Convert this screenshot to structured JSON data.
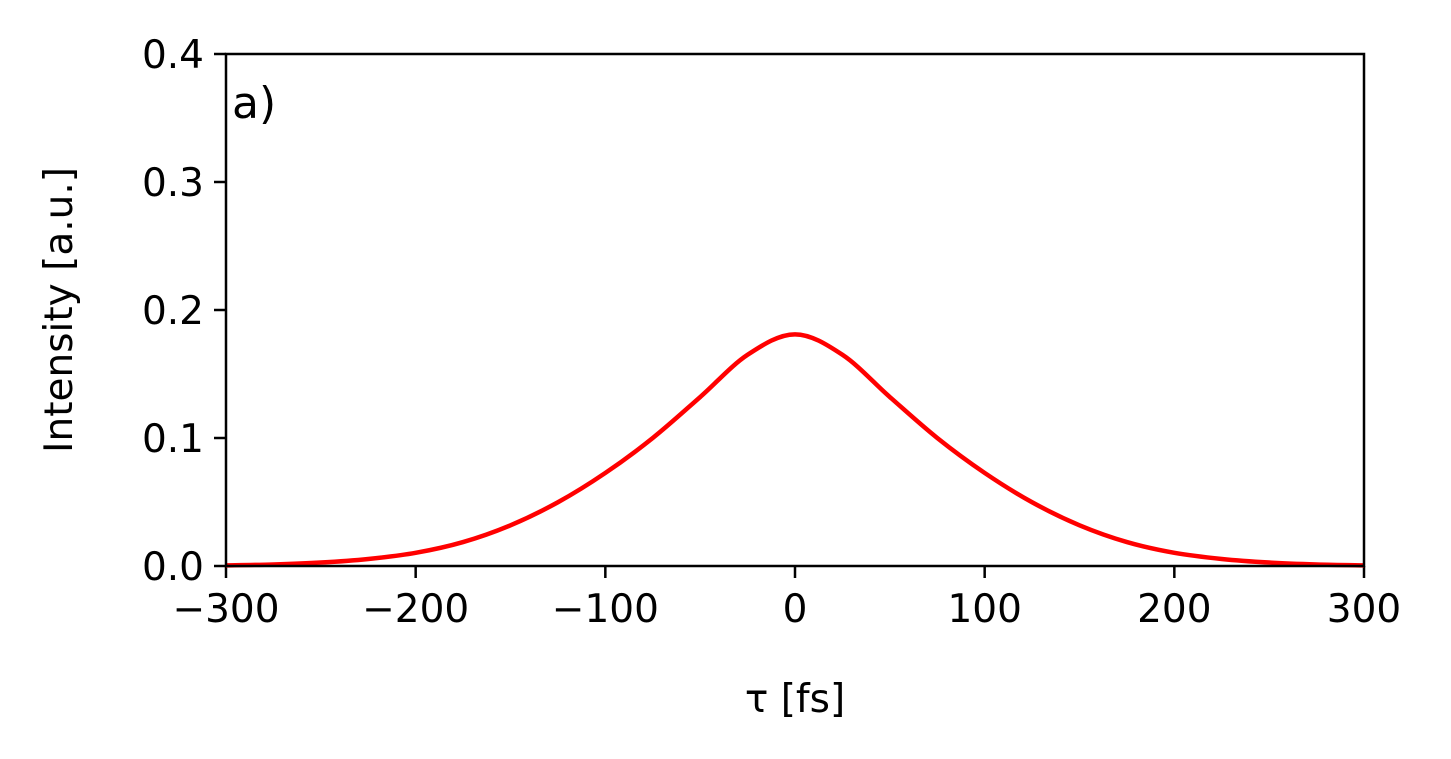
{
  "chart_data": {
    "type": "line",
    "panel_label": "a)",
    "xlabel": "τ [fs]",
    "ylabel": "Intensity [a.u.]",
    "xlim": [
      -300,
      300
    ],
    "ylim": [
      0,
      0.4
    ],
    "x_ticks": [
      -300,
      -200,
      -100,
      0,
      100,
      200,
      300
    ],
    "x_tick_labels": [
      "−300",
      "−200",
      "−100",
      "0",
      "100",
      "200",
      "300"
    ],
    "y_ticks": [
      0,
      0.1,
      0.2,
      0.3,
      0.4
    ],
    "y_tick_labels": [
      "0.0",
      "0.1",
      "0.2",
      "0.3",
      "0.4"
    ],
    "grid": false,
    "series": [
      {
        "color": "#ff0000",
        "x": [
          -300,
          -275,
          -250,
          -225,
          -200,
          -175,
          -150,
          -125,
          -100,
          -75,
          -50,
          -25,
          0,
          25,
          50,
          75,
          100,
          125,
          150,
          175,
          200,
          225,
          250,
          275,
          300
        ],
        "y": [
          0.0005,
          0.0012,
          0.0027,
          0.0055,
          0.0103,
          0.0187,
          0.0318,
          0.0498,
          0.0727,
          0.1,
          0.132,
          0.165,
          0.181,
          0.165,
          0.132,
          0.1,
          0.0727,
          0.0498,
          0.0318,
          0.0187,
          0.0103,
          0.0055,
          0.0027,
          0.0012,
          0.0005
        ]
      }
    ]
  }
}
